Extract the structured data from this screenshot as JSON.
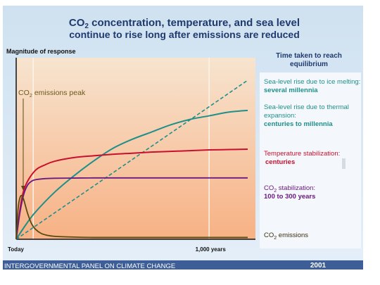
{
  "title": {
    "line1_prefix": "CO",
    "line1_sub": "2",
    "line1_rest": " concentration, temperature, and sea level",
    "line2": "continue to rise long after emissions are reduced"
  },
  "colors": {
    "background": "#dceaf6",
    "plot_top": "#f7dcc0",
    "plot_bottom": "#f9b88a",
    "title": "#1f3a6e",
    "ice_melting": "#1f8f8a",
    "thermal_expansion": "#1f8f8a",
    "temperature": "#c8102e",
    "co2_stabilization": "#6a1a80",
    "co2_emissions": "#5a4a10",
    "footer_bar": "#3d5e96",
    "footer_text": "#ffffff"
  },
  "chart_data": {
    "type": "line",
    "ylabel": "Magnitude of response",
    "x_ticks": [
      {
        "label": "Today",
        "x": 0
      },
      {
        "label": "1,000  years",
        "x": 1000
      }
    ],
    "xlim": [
      0,
      1240
    ],
    "ylim": [
      0,
      100
    ],
    "grid": false,
    "legend_placement": "right",
    "legend_heading": [
      "Time taken to reach",
      "equilibrium"
    ],
    "annotations": [
      {
        "text_prefix": "CO",
        "text_sub": "2",
        "text_rest": " emissions peak"
      }
    ],
    "series": [
      {
        "key": "ice_melting",
        "label": "Sea-level rise due to ice melting:",
        "timescale": "several millennia",
        "style": "dashed",
        "x": [
          0,
          100,
          200,
          300,
          400,
          500,
          600,
          700,
          800,
          900,
          1000,
          1100,
          1200
        ],
        "y": [
          0,
          7.3,
          14.6,
          21.9,
          29.2,
          36.5,
          43.8,
          51.1,
          58.4,
          65.7,
          73.0,
          80.3,
          87.6
        ]
      },
      {
        "key": "thermal_expansion",
        "label": "Sea-level rise due to thermal expansion:",
        "timescale": "centuries to millennia",
        "style": "solid",
        "x": [
          0,
          50,
          100,
          200,
          300,
          400,
          500,
          600,
          700,
          800,
          900,
          1000,
          1100,
          1200
        ],
        "y": [
          0,
          8,
          15,
          26,
          35,
          43,
          50,
          55,
          59,
          63,
          66,
          68,
          70,
          71
        ]
      },
      {
        "key": "temperature",
        "label": "Temperature stabilization:",
        "timescale": "centuries",
        "style": "solid",
        "x": [
          0,
          25,
          50,
          100,
          150,
          200,
          300,
          400,
          500,
          600,
          700,
          800,
          900,
          1000,
          1100,
          1200
        ],
        "y": [
          0,
          20,
          30,
          38,
          41,
          43,
          45,
          46,
          46.8,
          47.4,
          48,
          48.4,
          48.8,
          49.2,
          49.4,
          49.6
        ]
      },
      {
        "key": "co2_stabilization",
        "label_prefix": "CO",
        "label_sub": "2",
        "label_rest": " stabilization:",
        "timescale": "100 to 300 years",
        "style": "solid",
        "x": [
          0,
          20,
          40,
          60,
          80,
          100,
          150,
          200,
          300,
          400,
          600,
          800,
          1000,
          1200
        ],
        "y": [
          0,
          15,
          25,
          30,
          32,
          32.8,
          33.4,
          33.6,
          33.7,
          33.8,
          33.8,
          33.8,
          33.8,
          33.8
        ]
      },
      {
        "key": "co2_emissions",
        "label_prefix": "CO",
        "label_sub": "2",
        "label_rest": " emissions",
        "timescale": "",
        "style": "solid",
        "x": [
          0,
          10,
          20,
          30,
          40,
          60,
          80,
          100,
          130,
          160,
          200,
          300,
          400,
          600,
          800,
          1000,
          1200
        ],
        "y": [
          0,
          17,
          23,
          24,
          21.5,
          14,
          8.5,
          5.5,
          3.2,
          2.2,
          1.6,
          1.2,
          1.0,
          1.0,
          1.0,
          1.0,
          1.0
        ]
      }
    ]
  },
  "footer": {
    "organization": "INTERGOVERNMENTAL PANEL ON CLIMATE CHANGE",
    "year": "2001"
  }
}
